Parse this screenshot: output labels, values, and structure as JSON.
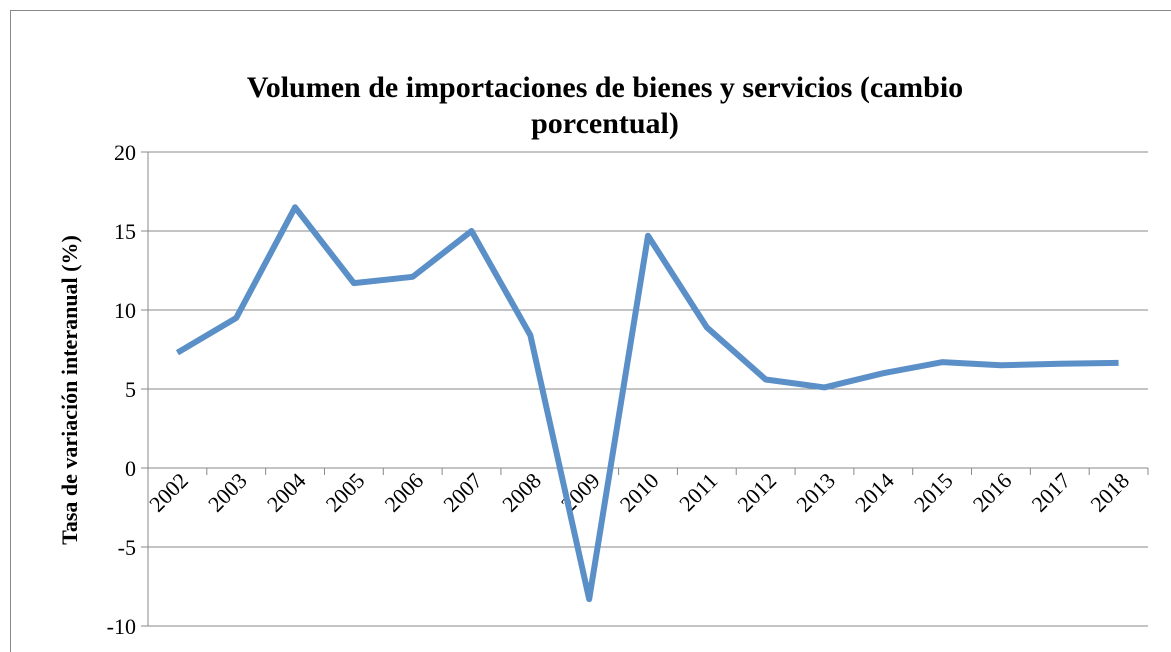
{
  "chart_data": {
    "type": "line",
    "title": "Volumen de importaciones de bienes y servicios (cambio porcentual)",
    "y_label": "Tasa de variación interanual (%)",
    "categories": [
      "2002",
      "2003",
      "2004",
      "2005",
      "2006",
      "2007",
      "2008",
      "2009",
      "2010",
      "2011",
      "2012",
      "2013",
      "2014",
      "2015",
      "2016",
      "2017",
      "2018"
    ],
    "series": [
      {
        "name": "Volumen de importaciones",
        "color": "#5b8fc7",
        "values": [
          7.3,
          9.5,
          16.5,
          11.7,
          12.1,
          15.0,
          8.4,
          -8.3,
          14.7,
          8.9,
          5.6,
          5.1,
          6.0,
          6.7,
          6.5,
          6.6,
          6.65
        ]
      }
    ],
    "ylim": [
      -10,
      20
    ],
    "yticks": [
      -10,
      -5,
      0,
      5,
      10,
      15,
      20
    ],
    "grid": true
  }
}
